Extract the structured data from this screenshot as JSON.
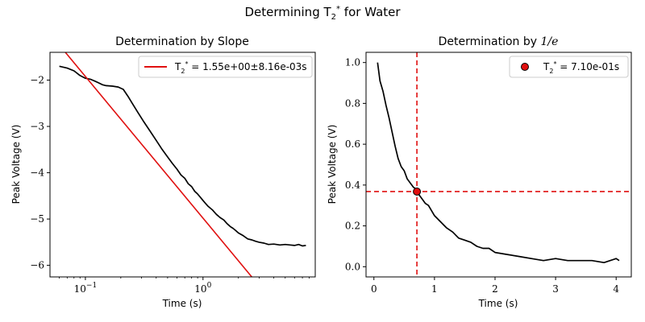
{
  "figure": {
    "suptitle_main": "Determining T",
    "suptitle_sub": "2",
    "suptitle_sup": "*",
    "suptitle_rest": " for Water"
  },
  "chart_data": [
    {
      "type": "line",
      "title": "Determination by Slope",
      "xlabel": "Time (s)",
      "ylabel": "Peak Voltage (V)",
      "xscale": "log",
      "xlim": [
        0.05,
        9.0
      ],
      "ylim": [
        -6.25,
        -1.4
      ],
      "xticks": [
        {
          "value": 0.1,
          "label": "10",
          "sup": "−1"
        },
        {
          "value": 1,
          "label": "10",
          "sup": "0"
        }
      ],
      "yticks": [
        -6,
        -5,
        -4,
        -3,
        -2
      ],
      "grid": false,
      "legend": {
        "location": "top-right",
        "entry_main": "T",
        "entry_sub": "2",
        "entry_sup": "*",
        "entry_rest": " = 1.55e+00±8.16e-03s"
      },
      "series": [
        {
          "kind": "data",
          "color": "#000000",
          "x": [
            0.06,
            0.07,
            0.08,
            0.09,
            0.1,
            0.11,
            0.12,
            0.13,
            0.14,
            0.15,
            0.17,
            0.19,
            0.21,
            0.23,
            0.25,
            0.28,
            0.31,
            0.35,
            0.4,
            0.45,
            0.5,
            0.55,
            0.6,
            0.65,
            0.7,
            0.75,
            0.8,
            0.85,
            0.9,
            0.95,
            1.0,
            1.1,
            1.2,
            1.3,
            1.4,
            1.5,
            1.6,
            1.7,
            1.8,
            1.9,
            2.0,
            2.2,
            2.4,
            2.6,
            2.8,
            3.0,
            3.3,
            3.6,
            4.0,
            4.5,
            5.0,
            5.5,
            6.0,
            6.5,
            7.0,
            7.5
          ],
          "y": [
            -1.7,
            -1.74,
            -1.8,
            -1.9,
            -1.96,
            -1.98,
            -2.02,
            -2.06,
            -2.1,
            -2.12,
            -2.13,
            -2.15,
            -2.2,
            -2.35,
            -2.5,
            -2.7,
            -2.88,
            -3.08,
            -3.3,
            -3.5,
            -3.66,
            -3.8,
            -3.92,
            -4.05,
            -4.12,
            -4.24,
            -4.3,
            -4.4,
            -4.46,
            -4.53,
            -4.6,
            -4.72,
            -4.8,
            -4.9,
            -4.97,
            -5.02,
            -5.1,
            -5.16,
            -5.2,
            -5.25,
            -5.3,
            -5.36,
            -5.43,
            -5.45,
            -5.48,
            -5.5,
            -5.52,
            -5.55,
            -5.54,
            -5.56,
            -5.55,
            -5.56,
            -5.57,
            -5.55,
            -5.58,
            -5.57
          ]
        },
        {
          "kind": "fit",
          "color": "#e01010",
          "x": [
            0.05,
            2.6
          ],
          "y": [
            -1.0,
            -6.25
          ]
        }
      ]
    },
    {
      "type": "line",
      "title": "Determination by 1/e",
      "title_main": "Determination by ",
      "title_math": "1/e",
      "xlabel": "Time (s)",
      "ylabel": "Peak Voltage (V)",
      "xscale": "linear",
      "xlim": [
        -0.13,
        4.25
      ],
      "ylim": [
        -0.05,
        1.05
      ],
      "xticks": [
        0,
        1,
        2,
        3,
        4
      ],
      "yticks": [
        0.0,
        0.2,
        0.4,
        0.6,
        0.8,
        1.0
      ],
      "grid": false,
      "legend": {
        "location": "top-right",
        "entry_main": "T",
        "entry_sub": "2",
        "entry_sup": "*",
        "entry_rest": " = 7.10e-01s"
      },
      "guide_lines": {
        "x": 0.71,
        "y": 0.368,
        "color": "#e01010"
      },
      "marker": {
        "x": 0.71,
        "y": 0.368,
        "color": "#e01010"
      },
      "series": [
        {
          "kind": "data",
          "color": "#000000",
          "x": [
            0.06,
            0.1,
            0.15,
            0.2,
            0.25,
            0.3,
            0.35,
            0.4,
            0.45,
            0.5,
            0.55,
            0.6,
            0.65,
            0.7,
            0.75,
            0.8,
            0.85,
            0.9,
            1.0,
            1.1,
            1.2,
            1.3,
            1.4,
            1.5,
            1.6,
            1.7,
            1.8,
            1.9,
            2.0,
            2.2,
            2.4,
            2.6,
            2.8,
            3.0,
            3.2,
            3.4,
            3.6,
            3.8,
            4.0,
            4.05
          ],
          "y": [
            1.0,
            0.91,
            0.86,
            0.79,
            0.73,
            0.66,
            0.59,
            0.53,
            0.49,
            0.47,
            0.43,
            0.41,
            0.39,
            0.38,
            0.35,
            0.33,
            0.31,
            0.3,
            0.25,
            0.22,
            0.19,
            0.17,
            0.14,
            0.13,
            0.12,
            0.1,
            0.09,
            0.09,
            0.07,
            0.06,
            0.05,
            0.04,
            0.03,
            0.04,
            0.03,
            0.03,
            0.03,
            0.02,
            0.04,
            0.03
          ]
        }
      ]
    }
  ]
}
